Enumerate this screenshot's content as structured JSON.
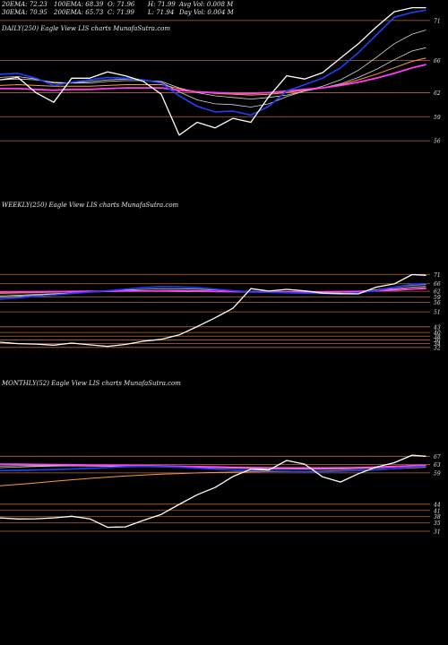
{
  "header": {
    "row1": [
      "20EMA: 72.23",
      "100EMA: 68.39",
      "O: 71.96",
      "H: 71.99",
      "Avg Vol: 0.008 M"
    ],
    "row2": [
      "30EMA: 70.95",
      "200EMA: 65.73",
      "C: 71.99",
      "L: 71.94",
      "Day Vol: 0.004 M"
    ]
  },
  "colors": {
    "price": "#ffffff",
    "ema_fast": "#1f3fff",
    "ema_bands": "#d8d8d8",
    "ema_slow_a": "#ff3df5",
    "ema_slow_b": "#ff9a3a",
    "ema_long": "#c62a2a",
    "level_line": "#b86a2e",
    "label": "#e8e8e8",
    "background": "#000000"
  },
  "chart_data": [
    {
      "type": "line",
      "title": "DAILY(250) Eagle   View  LIS charts MunafaSutra.com",
      "y_tick_labels": [
        "71",
        "66",
        "62",
        "59",
        "56"
      ],
      "level_lines": [
        71,
        66,
        62,
        59,
        56
      ],
      "ylim": [
        54,
        73
      ],
      "x": [
        0,
        20,
        40,
        60,
        80,
        100,
        120,
        140,
        160,
        180,
        200,
        220,
        240,
        260,
        280,
        300,
        320,
        340,
        360,
        380,
        400,
        420,
        440,
        460,
        475
      ],
      "series": [
        {
          "role": "price",
          "values": [
            63.6,
            63.9,
            62.0,
            60.8,
            63.8,
            63.8,
            64.6,
            64.1,
            63.4,
            61.8,
            56.7,
            58.3,
            57.6,
            58.8,
            58.3,
            61.5,
            64.1,
            63.7,
            64.5,
            66.3,
            68.1,
            70.2,
            72.1,
            72.6,
            72.6
          ]
        },
        {
          "role": "ema_fast",
          "values": [
            64.3,
            64.4,
            63.8,
            62.9,
            63.3,
            63.6,
            63.9,
            63.8,
            63.6,
            63.2,
            61.6,
            60.3,
            59.6,
            59.7,
            59.2,
            60.3,
            62.2,
            63.0,
            63.8,
            65.1,
            67.0,
            69.2,
            71.4,
            72.0,
            72.3
          ]
        },
        {
          "role": "ema_band_a",
          "values": [
            63.9,
            64.0,
            63.7,
            63.2,
            63.2,
            63.4,
            63.6,
            63.7,
            63.6,
            63.3,
            62.1,
            61.1,
            60.6,
            60.5,
            60.2,
            60.6,
            61.5,
            62.2,
            62.8,
            63.6,
            64.8,
            66.4,
            68.1,
            69.3,
            69.8
          ]
        },
        {
          "role": "ema_band_b",
          "values": [
            63.6,
            63.7,
            63.6,
            63.3,
            63.2,
            63.2,
            63.4,
            63.5,
            63.5,
            63.4,
            62.6,
            62.0,
            61.6,
            61.4,
            61.2,
            61.4,
            61.7,
            62.2,
            62.6,
            63.1,
            63.9,
            64.9,
            66.1,
            67.2,
            67.6
          ]
        },
        {
          "role": "ema_slow_a",
          "values": [
            62.5,
            62.5,
            62.4,
            62.3,
            62.4,
            62.4,
            62.5,
            62.6,
            62.6,
            62.6,
            62.3,
            62.1,
            62.0,
            61.9,
            61.9,
            62.0,
            62.2,
            62.4,
            62.6,
            62.9,
            63.3,
            63.8,
            64.4,
            65.1,
            65.5
          ]
        },
        {
          "role": "ema_slow_b",
          "values": [
            62.9,
            63.0,
            62.9,
            62.8,
            62.8,
            62.8,
            62.9,
            63.0,
            63.0,
            63.0,
            62.5,
            62.1,
            61.9,
            61.8,
            61.7,
            61.8,
            62.0,
            62.3,
            62.6,
            63.0,
            63.6,
            64.3,
            65.1,
            65.9,
            66.3
          ]
        }
      ]
    },
    {
      "type": "line",
      "title": "WEEKLY(250) Eagle   View  LIS charts MunafaSutra.com",
      "y_tick_labels": [
        "71",
        "66",
        "62",
        "59",
        "56",
        "51",
        "43",
        "40",
        "38",
        "36",
        "34",
        "32"
      ],
      "level_lines": [
        71,
        66,
        62,
        59,
        56,
        51,
        43,
        40,
        38,
        36,
        34,
        32
      ],
      "ylim": [
        30,
        74
      ],
      "x": [
        0,
        20,
        40,
        60,
        80,
        100,
        120,
        140,
        160,
        180,
        200,
        220,
        240,
        260,
        280,
        300,
        320,
        340,
        360,
        380,
        400,
        420,
        440,
        460,
        475
      ],
      "series": [
        {
          "role": "price",
          "values": [
            34.8,
            34.0,
            33.8,
            33.2,
            34.3,
            33.4,
            32.6,
            33.6,
            35.3,
            36.3,
            38.7,
            43.1,
            47.8,
            52.9,
            63.4,
            62.1,
            63.0,
            62.2,
            61.0,
            60.7,
            60.6,
            64.2,
            65.9,
            70.9,
            70.5
          ]
        },
        {
          "role": "ema_fast",
          "values": [
            57.8,
            58.5,
            59.3,
            60.0,
            60.8,
            61.5,
            62.3,
            63.1,
            63.9,
            64.4,
            64.3,
            63.9,
            63.1,
            62.3,
            61.6,
            61.4,
            61.2,
            61.0,
            60.8,
            60.7,
            61.2,
            62.4,
            64.1,
            65.7,
            66.0
          ]
        },
        {
          "role": "ema_band_a",
          "values": [
            58.8,
            59.3,
            59.9,
            60.4,
            61.0,
            61.6,
            62.1,
            62.6,
            63.0,
            63.3,
            63.3,
            63.1,
            62.7,
            62.2,
            61.8,
            61.6,
            61.5,
            61.4,
            61.3,
            61.4,
            61.9,
            62.8,
            64.0,
            65.2,
            65.6
          ]
        },
        {
          "role": "ema_band_b",
          "values": [
            59.6,
            59.9,
            60.3,
            60.7,
            61.1,
            61.5,
            61.8,
            62.1,
            62.3,
            62.4,
            62.4,
            62.3,
            62.1,
            61.9,
            61.7,
            61.6,
            61.6,
            61.6,
            61.6,
            61.7,
            62.0,
            62.6,
            63.3,
            64.2,
            64.6
          ]
        },
        {
          "role": "ema_slow_a",
          "values": [
            61.5,
            61.6,
            61.7,
            61.8,
            61.9,
            62.0,
            62.0,
            62.1,
            62.1,
            62.1,
            62.0,
            62.0,
            61.9,
            61.8,
            61.7,
            61.7,
            61.6,
            61.6,
            61.6,
            61.7,
            61.9,
            62.2,
            62.6,
            63.2,
            63.5
          ]
        },
        {
          "role": "ema_slow_b",
          "values": [
            60.9,
            61.1,
            61.3,
            61.5,
            61.7,
            61.8,
            62.0,
            62.1,
            62.2,
            62.3,
            62.2,
            62.1,
            62.0,
            61.9,
            61.8,
            61.7,
            61.7,
            61.7,
            61.6,
            61.7,
            61.9,
            62.3,
            62.8,
            63.4,
            63.8
          ]
        }
      ]
    },
    {
      "type": "line",
      "title": "MONTHLY(52) Eagle   View  LIS charts MunafaSutra.com",
      "y_tick_labels": [
        "67",
        "63",
        "59",
        "44",
        "41",
        "38",
        "35",
        "31"
      ],
      "level_lines": [
        67,
        63,
        59,
        44,
        41,
        38,
        35,
        31
      ],
      "ylim": [
        28,
        71
      ],
      "x": [
        0,
        20,
        40,
        60,
        80,
        100,
        120,
        140,
        160,
        180,
        200,
        220,
        240,
        260,
        280,
        300,
        320,
        340,
        360,
        380,
        400,
        420,
        440,
        460,
        475
      ],
      "series": [
        {
          "role": "price",
          "values": [
            37.4,
            36.9,
            37.0,
            37.4,
            38.2,
            37.0,
            32.9,
            33.1,
            36.2,
            39.1,
            43.9,
            48.5,
            52.0,
            57.3,
            60.8,
            60.4,
            65.0,
            63.2,
            57.1,
            54.6,
            58.6,
            61.8,
            63.9,
            67.5,
            67.0
          ]
        },
        {
          "role": "ema_fast",
          "values": [
            60.1,
            60.2,
            60.4,
            60.6,
            60.9,
            61.2,
            61.6,
            62.0,
            62.1,
            62.0,
            61.7,
            61.3,
            60.8,
            60.4,
            60.1,
            59.9,
            59.8,
            59.7,
            59.7,
            59.8,
            60.1,
            60.5,
            61.1,
            61.8,
            62.1
          ]
        },
        {
          "role": "ema_band_a",
          "values": [
            62.3,
            62.5,
            62.5,
            62.5,
            62.4,
            62.3,
            62.2,
            62.1,
            62.0,
            61.9,
            61.8,
            61.7,
            61.6,
            61.5,
            61.4,
            61.3,
            61.3,
            61.3,
            61.3,
            61.4,
            61.6,
            61.8,
            62.2,
            62.6,
            62.8
          ]
        },
        {
          "role": "ema_band_b",
          "values": [
            61.5,
            61.8,
            62.1,
            62.3,
            62.4,
            62.4,
            62.4,
            62.3,
            62.2,
            62.1,
            61.9,
            61.7,
            61.5,
            61.3,
            61.1,
            61.0,
            60.9,
            60.8,
            60.8,
            60.9,
            61.1,
            61.4,
            61.8,
            62.3,
            62.5
          ]
        },
        {
          "role": "ema_slow_a",
          "values": [
            63.2,
            63.2,
            63.1,
            63.0,
            62.9,
            62.8,
            62.7,
            62.6,
            62.5,
            62.3,
            62.2,
            62.0,
            61.9,
            61.7,
            61.6,
            61.5,
            61.4,
            61.4,
            61.4,
            61.5,
            61.6,
            61.8,
            62.1,
            62.4,
            62.6
          ]
        },
        {
          "role": "ema_slow_b",
          "values": [
            52.8,
            53.5,
            54.2,
            55.0,
            55.7,
            56.4,
            57.0,
            57.5,
            58.0,
            58.4,
            58.7,
            59.0,
            59.2,
            59.4,
            59.5,
            59.6,
            59.7,
            59.8,
            59.9,
            60.1,
            60.3,
            60.6,
            61.0,
            61.4,
            61.7
          ]
        }
      ]
    }
  ]
}
